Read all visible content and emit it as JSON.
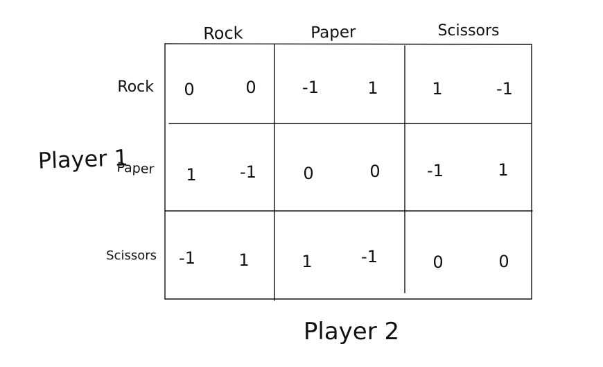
{
  "player1_label": "Player 1",
  "player2_label": "Player 2",
  "col_headers": [
    "Rock",
    "Paper",
    "Scissors"
  ],
  "row_headers": [
    "Rock",
    "Paper",
    "Scissors"
  ],
  "payoffs": [
    [
      [
        "0",
        "0"
      ],
      [
        "-1",
        "1"
      ],
      [
        "1",
        "-1"
      ]
    ],
    [
      [
        "1",
        "-1"
      ],
      [
        "0",
        "0"
      ],
      [
        "-1",
        "1"
      ]
    ],
    [
      [
        "-1",
        "1"
      ],
      [
        "1",
        "-1"
      ],
      [
        "0",
        "0"
      ]
    ]
  ]
}
